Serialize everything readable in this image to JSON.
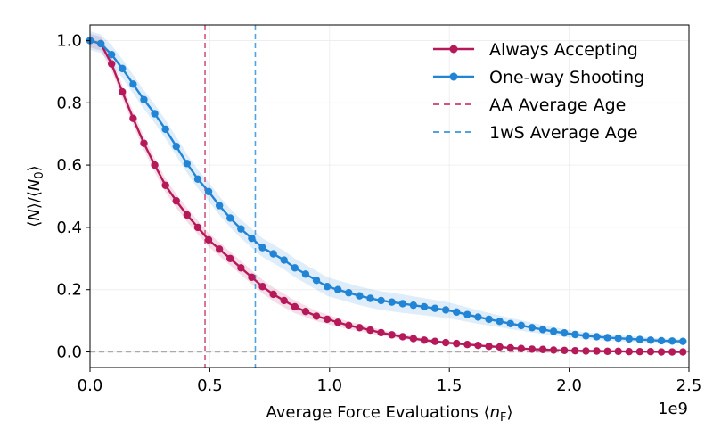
{
  "chart_data": {
    "type": "line",
    "title": "",
    "xlabel": "Average Force Evaluations ⟨n_F⟩",
    "ylabel": "⟨N⟩/⟨N_0⟩",
    "x_exponent_label": "1e9",
    "xlim": [
      0,
      2.5
    ],
    "ylim": [
      -0.05,
      1.05
    ],
    "x_ticks": [
      0.0,
      0.5,
      1.0,
      1.5,
      2.0,
      2.5
    ],
    "x_tick_labels": [
      "0.0",
      "0.5",
      "1.0",
      "1.5",
      "2.0",
      "2.5"
    ],
    "y_ticks": [
      0.0,
      0.2,
      0.4,
      0.6,
      0.8,
      1.0
    ],
    "y_tick_labels": [
      "0.0",
      "0.2",
      "0.4",
      "0.6",
      "0.8",
      "1.0"
    ],
    "grid": true,
    "legend_position": "top-right",
    "series": [
      {
        "name": "Always Accepting",
        "color": "#b5195a",
        "x": [
          0.0,
          0.045,
          0.09,
          0.135,
          0.18,
          0.225,
          0.27,
          0.315,
          0.36,
          0.405,
          0.45,
          0.495,
          0.54,
          0.585,
          0.63,
          0.675,
          0.72,
          0.765,
          0.81,
          0.855,
          0.9,
          0.945,
          0.99,
          1.035,
          1.08,
          1.125,
          1.17,
          1.215,
          1.26,
          1.305,
          1.35,
          1.395,
          1.44,
          1.485,
          1.53,
          1.575,
          1.62,
          1.665,
          1.71,
          1.755,
          1.8,
          1.845,
          1.89,
          1.935,
          1.98,
          2.025,
          2.07,
          2.115,
          2.16,
          2.205,
          2.25,
          2.295,
          2.34,
          2.385,
          2.43,
          2.475
        ],
        "values": [
          1.0,
          0.99,
          0.925,
          0.835,
          0.75,
          0.67,
          0.6,
          0.535,
          0.485,
          0.44,
          0.4,
          0.36,
          0.33,
          0.3,
          0.27,
          0.24,
          0.21,
          0.185,
          0.165,
          0.145,
          0.13,
          0.115,
          0.105,
          0.095,
          0.085,
          0.078,
          0.07,
          0.062,
          0.055,
          0.049,
          0.043,
          0.038,
          0.034,
          0.03,
          0.027,
          0.024,
          0.021,
          0.018,
          0.016,
          0.013,
          0.011,
          0.009,
          0.008,
          0.006,
          0.005,
          0.004,
          0.003,
          0.003,
          0.002,
          0.002,
          0.001,
          0.001,
          0.001,
          0.0,
          0.0,
          0.0
        ],
        "band": 0.022
      },
      {
        "name": "One-way Shooting",
        "color": "#2284d4",
        "x": [
          0.0,
          0.045,
          0.09,
          0.135,
          0.18,
          0.225,
          0.27,
          0.315,
          0.36,
          0.405,
          0.45,
          0.495,
          0.54,
          0.585,
          0.63,
          0.675,
          0.72,
          0.765,
          0.81,
          0.855,
          0.9,
          0.945,
          0.99,
          1.035,
          1.08,
          1.125,
          1.17,
          1.215,
          1.26,
          1.305,
          1.35,
          1.395,
          1.44,
          1.485,
          1.53,
          1.575,
          1.62,
          1.665,
          1.71,
          1.755,
          1.8,
          1.845,
          1.89,
          1.935,
          1.98,
          2.025,
          2.07,
          2.115,
          2.16,
          2.205,
          2.25,
          2.295,
          2.34,
          2.385,
          2.43,
          2.475
        ],
        "values": [
          1.0,
          0.99,
          0.955,
          0.91,
          0.86,
          0.81,
          0.765,
          0.715,
          0.66,
          0.605,
          0.555,
          0.515,
          0.47,
          0.43,
          0.395,
          0.365,
          0.335,
          0.315,
          0.295,
          0.27,
          0.25,
          0.23,
          0.21,
          0.2,
          0.19,
          0.18,
          0.172,
          0.165,
          0.16,
          0.155,
          0.15,
          0.145,
          0.14,
          0.135,
          0.128,
          0.12,
          0.112,
          0.105,
          0.098,
          0.091,
          0.085,
          0.078,
          0.072,
          0.066,
          0.061,
          0.056,
          0.052,
          0.049,
          0.046,
          0.044,
          0.042,
          0.04,
          0.038,
          0.036,
          0.035,
          0.034
        ],
        "band": 0.03
      }
    ],
    "vlines": [
      {
        "name": "AA Average Age",
        "x": 0.48,
        "color": "#d1557d",
        "style": "dashed"
      },
      {
        "name": "1wS Average Age",
        "x": 0.69,
        "color": "#4ea3e0",
        "style": "dashed"
      }
    ],
    "hlines": [
      {
        "y": 0.0,
        "color": "#aaaaaa",
        "style": "dashed"
      }
    ]
  }
}
